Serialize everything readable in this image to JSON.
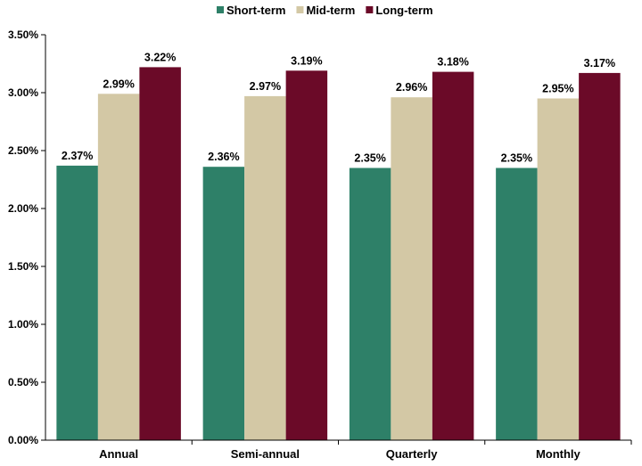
{
  "chart_data": {
    "type": "bar",
    "categories": [
      "Annual",
      "Semi-annual",
      "Quarterly",
      "Monthly"
    ],
    "series": [
      {
        "name": "Short-term",
        "color": "#2e8068",
        "values": [
          2.37,
          2.36,
          2.35,
          2.35
        ],
        "labels": [
          "2.37%",
          "2.36%",
          "2.35%",
          "2.35%"
        ]
      },
      {
        "name": "Mid-term",
        "color": "#d3c8a5",
        "values": [
          2.99,
          2.97,
          2.96,
          2.95
        ],
        "labels": [
          "2.99%",
          "2.97%",
          "2.96%",
          "2.95%"
        ]
      },
      {
        "name": "Long-term",
        "color": "#6b0a28",
        "values": [
          3.22,
          3.19,
          3.18,
          3.17
        ],
        "labels": [
          "3.22%",
          "3.19%",
          "3.18%",
          "3.17%"
        ]
      }
    ],
    "y_ticks": [
      0,
      0.5,
      1,
      1.5,
      2,
      2.5,
      3,
      3.5
    ],
    "y_tick_labels": [
      "0.00%",
      "0.50%",
      "1.00%",
      "1.50%",
      "2.00%",
      "2.50%",
      "3.00%",
      "3.50%"
    ],
    "ylim": [
      0,
      3.5
    ],
    "grid": false,
    "legend_position": "top-center",
    "title": "",
    "xlabel": "",
    "ylabel": ""
  }
}
